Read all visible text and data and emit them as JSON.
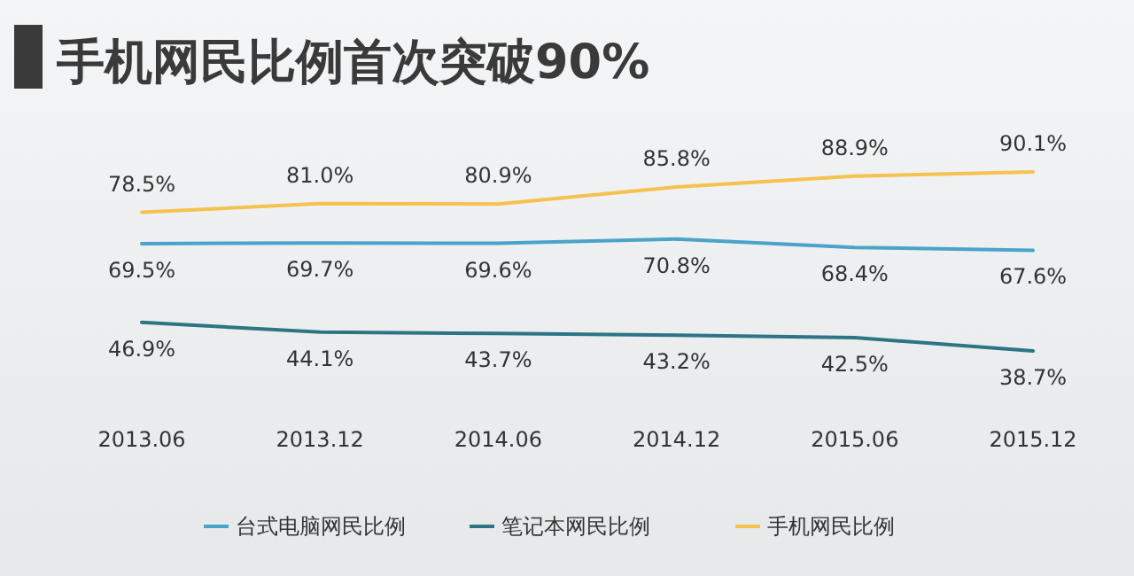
{
  "chart_data": {
    "type": "line",
    "title": "手机网民比例首次突破90%",
    "categories": [
      "2013.06",
      "2013.12",
      "2014.06",
      "2014.12",
      "2015.06",
      "2015.12"
    ],
    "series": [
      {
        "name": "台式电脑网民比例",
        "color": "#4aa3c8",
        "values": [
          69.5,
          69.7,
          69.6,
          70.8,
          68.4,
          67.6
        ],
        "value_labels": [
          "69.5%",
          "69.7%",
          "69.6%",
          "70.8%",
          "68.4%",
          "67.6%"
        ]
      },
      {
        "name": "笔记本网民比例",
        "color": "#2b7585",
        "values": [
          46.9,
          44.1,
          43.7,
          43.2,
          42.5,
          38.7
        ],
        "value_labels": [
          "46.9%",
          "44.1%",
          "43.7%",
          "43.2%",
          "42.5%",
          "38.7%"
        ]
      },
      {
        "name": "手机网民比例",
        "color": "#f5c24e",
        "values": [
          78.5,
          81.0,
          80.9,
          85.8,
          88.9,
          90.1
        ],
        "value_labels": [
          "78.5%",
          "81.0%",
          "80.9%",
          "85.8%",
          "88.9%",
          "90.1%"
        ]
      }
    ],
    "legend": "bottom",
    "marker": "none",
    "grid": false
  }
}
